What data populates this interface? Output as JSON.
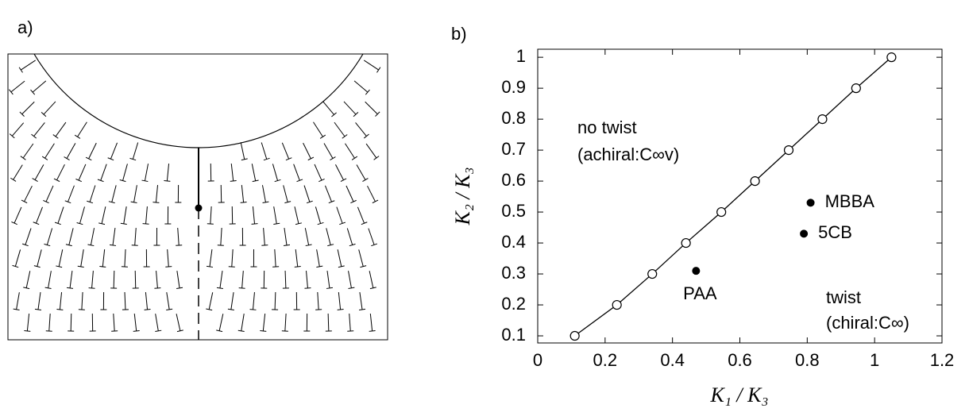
{
  "panel_a": {
    "label": "a)"
  },
  "chart_data": {
    "type": "scatter",
    "panel_label": "b)",
    "xlabel": "K₁ / K₃",
    "ylabel": "K₂ / K₃",
    "xlim": [
      0,
      1.2
    ],
    "ylim": [
      0.077,
      1.026
    ],
    "xticks": [
      0,
      0.2,
      0.4,
      0.6,
      0.8,
      1,
      1.2
    ],
    "yticks": [
      0.1,
      0.2,
      0.3,
      0.4,
      0.5,
      0.6,
      0.7,
      0.8,
      0.9,
      1
    ],
    "x": [
      0.11,
      0.235,
      0.34,
      0.44,
      0.545,
      0.645,
      0.745,
      0.845,
      0.945,
      1.05
    ],
    "values": [
      0.1,
      0.2,
      0.3,
      0.4,
      0.5,
      0.6,
      0.7,
      0.8,
      0.9,
      1
    ],
    "color": "#000000",
    "points": [
      {
        "label": "MBBA",
        "x": 0.81,
        "y": 0.53
      },
      {
        "label": "5CB",
        "x": 0.79,
        "y": 0.43
      },
      {
        "label": "PAA",
        "x": 0.47,
        "y": 0.31
      }
    ],
    "annotations": [
      "no twist",
      "(achiral:C∞v)",
      "twist",
      "(chiral:C∞)"
    ]
  }
}
